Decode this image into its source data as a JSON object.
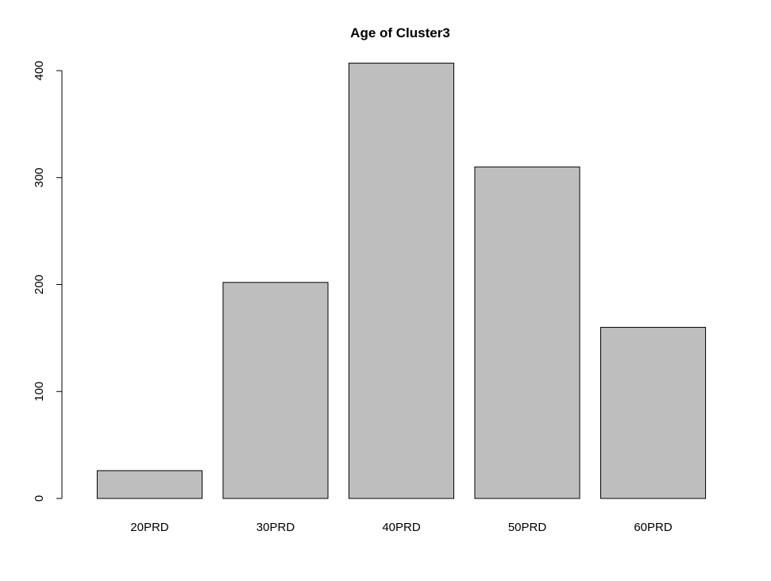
{
  "chart_data": {
    "type": "bar",
    "title": "Age of Cluster3",
    "xlabel": "",
    "ylabel": "",
    "categories": [
      "20PRD",
      "30PRD",
      "40PRD",
      "50PRD",
      "60PRD"
    ],
    "values": [
      26,
      202,
      407,
      310,
      160
    ],
    "ylim": [
      0,
      400
    ],
    "yticks": [
      0,
      100,
      200,
      300,
      400
    ],
    "ytick_labels": [
      "0",
      "100",
      "200",
      "300",
      "400"
    ],
    "grid": false,
    "legend": "none",
    "bar_fill": "#bebebe",
    "bar_stroke": "#000000"
  }
}
